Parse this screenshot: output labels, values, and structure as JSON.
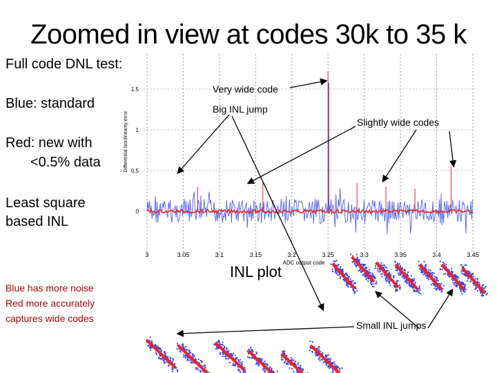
{
  "slide": {
    "title": "Zoomed in view at codes 30k to 35 k",
    "left_text": {
      "full_code": "Full code DNL test:",
      "blue": "Blue: standard",
      "red_line1": "Red: new with",
      "red_line2": "<0.5% data",
      "lsq_line1": "Least square",
      "lsq_line2": "based INL",
      "note_line1": "Blue has more noise",
      "note_line2": "Red more accurately",
      "note_line3": "captures wide codes"
    },
    "annotations": {
      "very_wide": "Very wide code",
      "big_inl": "Big INL jump",
      "slightly_wide": "Slightly wide codes",
      "inl_plot": "INL plot",
      "small_inl": "Small INL jumps"
    }
  },
  "colors": {
    "blue": "#3344ee",
    "red": "#ee2222",
    "note_red": "#b00000"
  },
  "chart_data": {
    "type": "line",
    "title": "",
    "xlabel": "ADC output code",
    "ylabel": "Differential Nonlinearity error",
    "x_ticks": [
      "3",
      "3.05",
      "3.1",
      "3.15",
      "3.2",
      "3.25",
      "3.3",
      "3.35",
      "3.4",
      "3.45"
    ],
    "y_ticks": [
      "0",
      "0.5",
      "1",
      "1.5"
    ],
    "xlim": [
      3.0,
      3.45
    ],
    "ylim": [
      -0.15,
      1.6
    ],
    "grid": true,
    "series": [
      {
        "color": "#3344ee",
        "note": "noise about 0 ±0.12"
      },
      {
        "color": "#ee2222",
        "spikes_x": [
          3.07,
          3.16,
          3.25,
          3.29,
          3.33,
          3.37,
          3.42
        ],
        "spikes_y": [
          0.3,
          0.35,
          1.72,
          0.35,
          0.3,
          0.28,
          0.55
        ]
      }
    ]
  }
}
